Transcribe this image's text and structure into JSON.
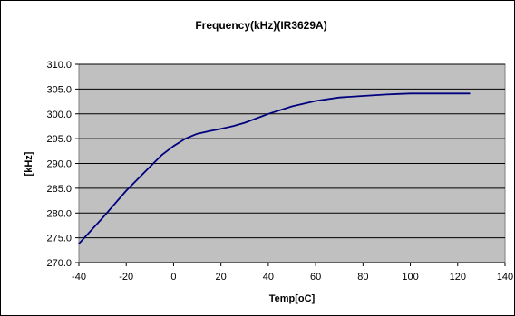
{
  "chart_data": {
    "type": "line",
    "title": "Frequency(kHz)(IR3629A)",
    "xlabel": "Temp[oC]",
    "ylabel": "[kHz]",
    "xlim": [
      -40,
      140
    ],
    "ylim": [
      270,
      310
    ],
    "xticks": [
      "-40",
      "-20",
      "0",
      "20",
      "40",
      "60",
      "80",
      "100",
      "120",
      "140"
    ],
    "yticks": [
      "310.0",
      "305.0",
      "300.0",
      "295.0",
      "290.0",
      "285.0",
      "280.0",
      "275.0",
      "270.0"
    ],
    "grid": true,
    "legend": "none",
    "series": [
      {
        "color": "#00007f",
        "x": [
          -40,
          -30,
          -20,
          -10,
          -5,
          0,
          5,
          10,
          15,
          20,
          25,
          30,
          40,
          50,
          60,
          70,
          80,
          90,
          95,
          100,
          110,
          125
        ],
        "y": [
          273.8,
          279.0,
          284.5,
          289.3,
          291.7,
          293.5,
          295.0,
          296.0,
          296.5,
          297.0,
          297.5,
          298.2,
          300.0,
          301.5,
          302.6,
          303.3,
          303.6,
          303.9,
          304.0,
          304.1,
          304.1,
          304.1
        ]
      }
    ]
  }
}
